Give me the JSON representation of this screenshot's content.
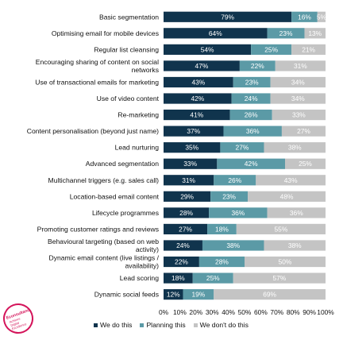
{
  "colors": {
    "we_do_this": "#10344d",
    "planning_this": "#5b9aa6",
    "dont_do_this": "#c4c4c4",
    "logo": "#d4145a"
  },
  "logo": {
    "brand": "Econsultancy",
    "tagline": "Achieve Digital Excellence"
  },
  "legend": {
    "we_do_this": "We do this",
    "planning_this": "Planning this",
    "dont_do_this": "We don't do this"
  },
  "chart_data": {
    "type": "bar",
    "orientation": "horizontal",
    "stacked": true,
    "categories": [
      "Basic segmentation",
      "Optimising email for mobile devices",
      "Regular list cleansing",
      "Encouraging sharing of content on social networks",
      "Use of transactional emails for marketing",
      "Use of video content",
      "Re-marketing",
      "Content personalisation (beyond just name)",
      "Lead nurturing",
      "Advanced segmentation",
      "Multichannel triggers (e.g. sales call)",
      "Location-based email content",
      "Lifecycle programmes",
      "Promoting customer ratings and reviews",
      "Behavioural targeting (based on web activity)",
      "Dynamic email content (live listings / availability)",
      "Lead scoring",
      "Dynamic social feeds"
    ],
    "series": [
      {
        "name": "We do this",
        "values": [
          79,
          64,
          54,
          47,
          43,
          42,
          41,
          37,
          35,
          33,
          31,
          29,
          28,
          27,
          24,
          22,
          18,
          12
        ]
      },
      {
        "name": "Planning this",
        "values": [
          16,
          23,
          25,
          22,
          23,
          24,
          26,
          36,
          27,
          42,
          26,
          23,
          36,
          18,
          38,
          28,
          25,
          19
        ]
      },
      {
        "name": "We don't do this",
        "values": [
          5,
          13,
          21,
          31,
          34,
          34,
          33,
          27,
          38,
          25,
          43,
          48,
          36,
          55,
          38,
          50,
          57,
          69
        ]
      }
    ],
    "xlim": [
      0,
      100
    ],
    "xticks": [
      "0%",
      "10%",
      "20%",
      "30%",
      "40%",
      "50%",
      "60%",
      "70%",
      "80%",
      "90%",
      "100%"
    ],
    "legend_position": "bottom",
    "grid": false
  }
}
